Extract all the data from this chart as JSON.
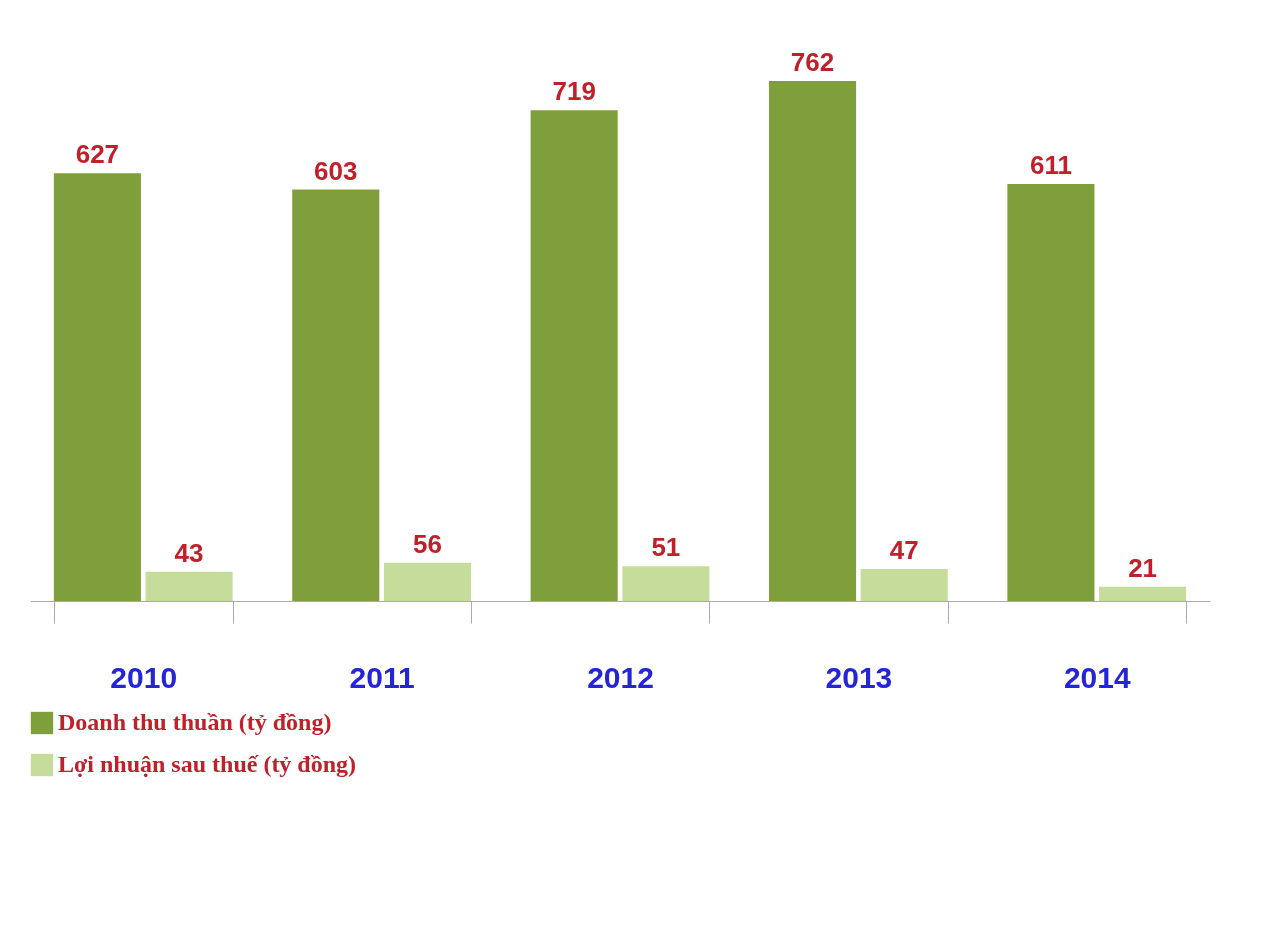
{
  "chart_data": {
    "type": "bar",
    "categories": [
      "2010",
      "2011",
      "2012",
      "2013",
      "2014"
    ],
    "series": [
      {
        "name": "Doanh thu thuần (tỷ đồng)",
        "color": "#7f9f3c",
        "values": [
          627,
          603,
          719,
          762,
          611
        ]
      },
      {
        "name": "Lợi nhuận sau thuế (tỷ đồng)",
        "color": "#c6dc9b",
        "values": [
          43,
          56,
          51,
          47,
          21
        ]
      }
    ],
    "data_labels": true,
    "grid": false,
    "legend": "bottom left"
  }
}
